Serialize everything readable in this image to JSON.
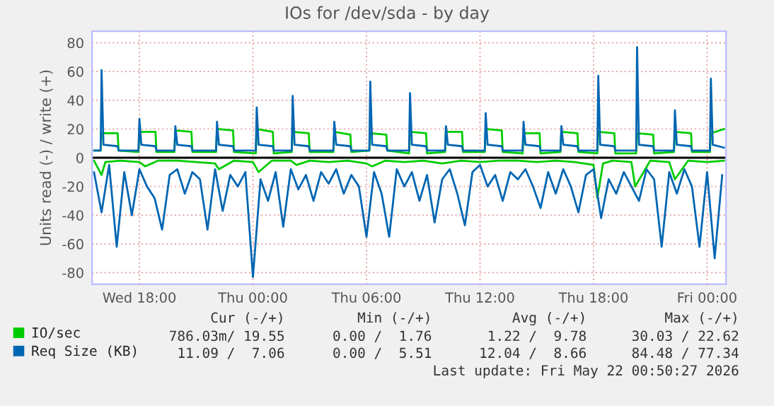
{
  "chart_data": {
    "type": "line",
    "title": "IOs for /dev/sda - by day",
    "ylabel": "Units read (-) / write (+)",
    "xlim": [
      "2026-05-20T15:30",
      "2026-05-22T01:00"
    ],
    "xticks": [
      {
        "value": "2026-05-20T18:00",
        "label": "Wed 18:00"
      },
      {
        "value": "2026-05-21T00:00",
        "label": "Thu 00:00"
      },
      {
        "value": "2026-05-21T06:00",
        "label": "Thu 06:00"
      },
      {
        "value": "2026-05-21T12:00",
        "label": "Thu 12:00"
      },
      {
        "value": "2026-05-21T18:00",
        "label": "Thu 18:00"
      },
      {
        "value": "2026-05-22T00:00",
        "label": "Fri 00:00"
      }
    ],
    "ylim": [
      -88,
      88
    ],
    "yticks": [
      -80,
      -60,
      -40,
      -20,
      0,
      20,
      40,
      60,
      80
    ],
    "grid": true,
    "legend": "bottom",
    "line_style": "solid",
    "ref_lines": [
      {
        "axis": "y",
        "value": 0,
        "color": "#000000"
      }
    ],
    "series": [
      {
        "name": "IO/sec",
        "color": "#00cc00",
        "x": [
          "2026-05-20T15:36",
          "2026-05-20T15:57",
          "2026-05-20T16:00",
          "2026-05-20T16:51",
          "2026-05-20T16:54",
          "2026-05-20T17:57",
          "2026-05-20T18:00",
          "2026-05-20T18:51",
          "2026-05-20T18:54",
          "2026-05-20T19:51",
          "2026-05-20T19:54",
          "2026-05-20T20:45",
          "2026-05-20T20:48",
          "2026-05-20T22:03",
          "2026-05-20T22:06",
          "2026-05-20T22:57",
          "2026-05-20T23:00",
          "2026-05-21T00:09",
          "2026-05-21T00:12",
          "2026-05-21T01:03",
          "2026-05-21T01:06",
          "2026-05-21T02:03",
          "2026-05-21T02:06",
          "2026-05-21T02:57",
          "2026-05-21T03:00",
          "2026-05-21T04:15",
          "2026-05-21T04:18",
          "2026-05-21T05:09",
          "2026-05-21T05:12",
          "2026-05-21T06:09",
          "2026-05-21T06:12",
          "2026-05-21T07:03",
          "2026-05-21T07:06",
          "2026-05-21T08:15",
          "2026-05-21T08:18",
          "2026-05-21T09:09",
          "2026-05-21T09:12",
          "2026-05-21T10:09",
          "2026-05-21T10:12",
          "2026-05-21T11:03",
          "2026-05-21T11:06",
          "2026-05-21T12:15",
          "2026-05-21T12:18",
          "2026-05-21T13:09",
          "2026-05-21T13:12",
          "2026-05-21T14:15",
          "2026-05-21T14:18",
          "2026-05-21T15:09",
          "2026-05-21T15:12",
          "2026-05-21T16:15",
          "2026-05-21T16:18",
          "2026-05-21T17:09",
          "2026-05-21T17:12",
          "2026-05-21T18:12",
          "2026-05-21T18:15",
          "2026-05-21T19:06",
          "2026-05-21T19:09",
          "2026-05-21T20:15",
          "2026-05-21T20:18",
          "2026-05-21T21:09",
          "2026-05-21T21:12",
          "2026-05-21T22:15",
          "2026-05-21T22:18",
          "2026-05-21T23:09",
          "2026-05-21T23:12",
          "2026-05-22T00:09",
          "2026-05-22T00:12",
          "2026-05-22T00:54"
        ],
        "values": [
          5,
          5,
          17,
          17,
          5,
          4,
          18,
          18,
          4,
          4,
          19,
          18,
          4,
          4,
          20,
          19,
          4,
          3,
          20,
          18,
          3,
          4,
          18,
          17,
          4,
          4,
          18,
          16,
          4,
          5,
          17,
          16,
          5,
          3,
          18,
          17,
          3,
          4,
          18,
          18,
          4,
          4,
          20,
          19,
          4,
          3,
          17,
          17,
          3,
          4,
          18,
          17,
          4,
          3,
          18,
          17,
          3,
          3,
          17,
          16,
          3,
          4,
          18,
          17,
          4,
          4,
          17,
          20
        ]
      },
      {
        "color": "#00cc00",
        "x": [
          "2026-05-20T15:36",
          "2026-05-20T16:00",
          "2026-05-20T16:12",
          "2026-05-20T17:00",
          "2026-05-20T18:00",
          "2026-05-20T18:18",
          "2026-05-20T19:00",
          "2026-05-20T20:00",
          "2026-05-20T21:00",
          "2026-05-20T22:00",
          "2026-05-20T22:12",
          "2026-05-20T23:00",
          "2026-05-21T00:00",
          "2026-05-21T00:18",
          "2026-05-21T01:00",
          "2026-05-21T02:00",
          "2026-05-21T02:18",
          "2026-05-21T03:00",
          "2026-05-21T04:00",
          "2026-05-21T05:00",
          "2026-05-21T06:00",
          "2026-05-21T06:18",
          "2026-05-21T07:00",
          "2026-05-21T08:00",
          "2026-05-21T09:00",
          "2026-05-21T10:00",
          "2026-05-21T11:00",
          "2026-05-21T12:00",
          "2026-05-21T13:00",
          "2026-05-21T14:00",
          "2026-05-21T15:00",
          "2026-05-21T16:00",
          "2026-05-21T17:00",
          "2026-05-21T18:00",
          "2026-05-21T18:12",
          "2026-05-21T18:30",
          "2026-05-21T19:00",
          "2026-05-21T20:00",
          "2026-05-21T20:12",
          "2026-05-21T21:00",
          "2026-05-21T22:00",
          "2026-05-21T22:18",
          "2026-05-21T23:00",
          "2026-05-22T00:00",
          "2026-05-22T00:54"
        ],
        "values": [
          -2,
          -12,
          -3,
          -2,
          -3,
          -6,
          -2,
          -2,
          -3,
          -4,
          -8,
          -2,
          -3,
          -10,
          -2,
          -2,
          -5,
          -2,
          -3,
          -2,
          -4,
          -6,
          -2,
          -3,
          -2,
          -4,
          -2,
          -3,
          -2,
          -2,
          -3,
          -2,
          -3,
          -5,
          -28,
          -4,
          -2,
          -3,
          -20,
          -2,
          -3,
          -15,
          -2,
          -3,
          -2
        ]
      },
      {
        "name": "Req Size (KB)",
        "color": "#0066b3",
        "x": [
          "2026-05-20T15:36",
          "2026-05-20T15:57",
          "2026-05-20T16:00",
          "2026-05-20T16:06",
          "2026-05-20T16:51",
          "2026-05-20T16:54",
          "2026-05-20T17:57",
          "2026-05-20T18:00",
          "2026-05-20T18:06",
          "2026-05-20T18:51",
          "2026-05-20T18:54",
          "2026-05-20T19:51",
          "2026-05-20T19:54",
          "2026-05-20T20:00",
          "2026-05-20T20:45",
          "2026-05-20T20:48",
          "2026-05-20T22:03",
          "2026-05-20T22:06",
          "2026-05-20T22:12",
          "2026-05-20T22:57",
          "2026-05-20T23:00",
          "2026-05-21T00:09",
          "2026-05-21T00:12",
          "2026-05-21T00:18",
          "2026-05-21T01:03",
          "2026-05-21T01:06",
          "2026-05-21T02:03",
          "2026-05-21T02:06",
          "2026-05-21T02:12",
          "2026-05-21T02:57",
          "2026-05-21T03:00",
          "2026-05-21T04:15",
          "2026-05-21T04:18",
          "2026-05-21T04:24",
          "2026-05-21T05:09",
          "2026-05-21T05:12",
          "2026-05-21T06:09",
          "2026-05-21T06:12",
          "2026-05-21T06:18",
          "2026-05-21T07:03",
          "2026-05-21T07:06",
          "2026-05-21T08:15",
          "2026-05-21T08:18",
          "2026-05-21T08:24",
          "2026-05-21T09:09",
          "2026-05-21T09:12",
          "2026-05-21T10:09",
          "2026-05-21T10:12",
          "2026-05-21T10:18",
          "2026-05-21T11:03",
          "2026-05-21T11:06",
          "2026-05-21T12:15",
          "2026-05-21T12:18",
          "2026-05-21T12:24",
          "2026-05-21T13:09",
          "2026-05-21T13:12",
          "2026-05-21T14:15",
          "2026-05-21T14:18",
          "2026-05-21T14:24",
          "2026-05-21T15:09",
          "2026-05-21T15:12",
          "2026-05-21T16:15",
          "2026-05-21T16:18",
          "2026-05-21T16:24",
          "2026-05-21T17:09",
          "2026-05-21T17:12",
          "2026-05-21T18:12",
          "2026-05-21T18:15",
          "2026-05-21T18:21",
          "2026-05-21T19:06",
          "2026-05-21T19:09",
          "2026-05-21T20:15",
          "2026-05-21T20:18",
          "2026-05-21T20:24",
          "2026-05-21T21:09",
          "2026-05-21T21:12",
          "2026-05-21T22:15",
          "2026-05-21T22:18",
          "2026-05-21T22:24",
          "2026-05-21T23:09",
          "2026-05-21T23:12",
          "2026-05-22T00:09",
          "2026-05-22T00:12",
          "2026-05-22T00:18",
          "2026-05-22T00:54"
        ],
        "values": [
          5,
          5,
          61,
          9,
          8,
          5,
          5,
          27,
          9,
          8,
          5,
          5,
          22,
          9,
          8,
          5,
          5,
          25,
          9,
          8,
          5,
          5,
          35,
          9,
          8,
          5,
          5,
          43,
          9,
          8,
          5,
          5,
          25,
          9,
          8,
          5,
          5,
          53,
          9,
          8,
          5,
          5,
          45,
          9,
          8,
          5,
          5,
          22,
          9,
          8,
          5,
          5,
          31,
          9,
          8,
          5,
          5,
          25,
          9,
          8,
          5,
          5,
          22,
          9,
          8,
          5,
          5,
          57,
          9,
          8,
          5,
          5,
          77,
          9,
          8,
          5,
          5,
          33,
          9,
          8,
          5,
          5,
          55,
          9,
          7
        ]
      },
      {
        "color": "#0066b3",
        "x": [
          "2026-05-20T15:36",
          "2026-05-20T16:00",
          "2026-05-20T16:24",
          "2026-05-20T16:48",
          "2026-05-20T17:12",
          "2026-05-20T17:36",
          "2026-05-20T18:00",
          "2026-05-20T18:24",
          "2026-05-20T18:48",
          "2026-05-20T19:12",
          "2026-05-20T19:36",
          "2026-05-20T20:00",
          "2026-05-20T20:24",
          "2026-05-20T20:48",
          "2026-05-20T21:12",
          "2026-05-20T21:36",
          "2026-05-20T22:00",
          "2026-05-20T22:24",
          "2026-05-20T22:48",
          "2026-05-20T23:12",
          "2026-05-20T23:36",
          "2026-05-21T00:00",
          "2026-05-21T00:24",
          "2026-05-21T00:48",
          "2026-05-21T01:12",
          "2026-05-21T01:36",
          "2026-05-21T02:00",
          "2026-05-21T02:24",
          "2026-05-21T02:48",
          "2026-05-21T03:12",
          "2026-05-21T03:36",
          "2026-05-21T04:00",
          "2026-05-21T04:24",
          "2026-05-21T04:48",
          "2026-05-21T05:12",
          "2026-05-21T05:36",
          "2026-05-21T06:00",
          "2026-05-21T06:24",
          "2026-05-21T06:48",
          "2026-05-21T07:12",
          "2026-05-21T07:36",
          "2026-05-21T08:00",
          "2026-05-21T08:24",
          "2026-05-21T08:48",
          "2026-05-21T09:12",
          "2026-05-21T09:36",
          "2026-05-21T10:00",
          "2026-05-21T10:24",
          "2026-05-21T10:48",
          "2026-05-21T11:12",
          "2026-05-21T11:36",
          "2026-05-21T12:00",
          "2026-05-21T12:24",
          "2026-05-21T12:48",
          "2026-05-21T13:12",
          "2026-05-21T13:36",
          "2026-05-21T14:00",
          "2026-05-21T14:24",
          "2026-05-21T14:48",
          "2026-05-21T15:12",
          "2026-05-21T15:36",
          "2026-05-21T16:00",
          "2026-05-21T16:24",
          "2026-05-21T16:48",
          "2026-05-21T17:12",
          "2026-05-21T17:36",
          "2026-05-21T18:00",
          "2026-05-21T18:24",
          "2026-05-21T18:48",
          "2026-05-21T19:12",
          "2026-05-21T19:36",
          "2026-05-21T20:00",
          "2026-05-21T20:24",
          "2026-05-21T20:48",
          "2026-05-21T21:12",
          "2026-05-21T21:36",
          "2026-05-21T22:00",
          "2026-05-21T22:24",
          "2026-05-21T22:48",
          "2026-05-21T23:12",
          "2026-05-21T23:36",
          "2026-05-22T00:00",
          "2026-05-22T00:24",
          "2026-05-22T00:48"
        ],
        "values": [
          -10,
          -38,
          -5,
          -62,
          -10,
          -40,
          -8,
          -20,
          -28,
          -50,
          -12,
          -8,
          -25,
          -10,
          -15,
          -50,
          -8,
          -37,
          -12,
          -20,
          -10,
          -83,
          -15,
          -30,
          -10,
          -48,
          -8,
          -22,
          -12,
          -30,
          -10,
          -18,
          -8,
          -25,
          -12,
          -20,
          -55,
          -10,
          -25,
          -55,
          -8,
          -20,
          -10,
          -30,
          -12,
          -45,
          -15,
          -8,
          -25,
          -47,
          -10,
          -5,
          -20,
          -12,
          -30,
          -10,
          -15,
          -8,
          -20,
          -35,
          -10,
          -25,
          -8,
          -20,
          -38,
          -12,
          -8,
          -42,
          -15,
          -25,
          -10,
          -20,
          -30,
          -8,
          -15,
          -62,
          -10,
          -25,
          -8,
          -20,
          -62,
          -10,
          -70,
          -12
        ]
      }
    ],
    "annotations": [
      "Cur (-/+)",
      "Min (-/+)",
      "Avg (-/+)",
      "Max (-/+)",
      "786.03m/ 19.55",
      "0.00 /  1.76",
      "1.22 /  9.78",
      "30.03 / 22.62",
      "11.09 /  7.06",
      "0.00 /  5.51",
      "12.04 /  8.66",
      "84.48 / 77.34",
      "Last update: Fri May 22 00:50:27 2026"
    ]
  }
}
